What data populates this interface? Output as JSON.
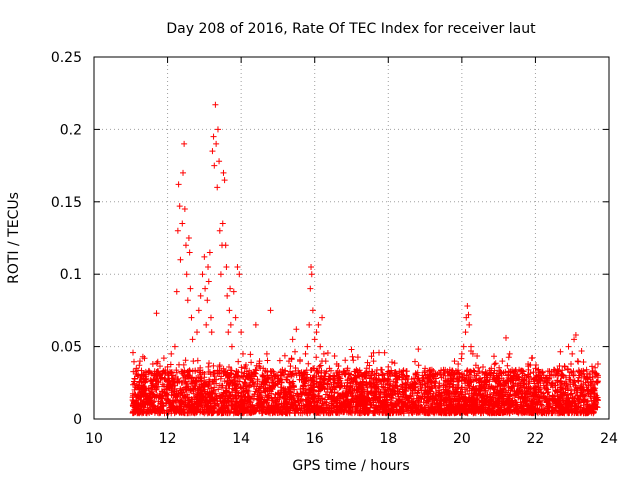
{
  "chart_data": {
    "type": "scatter",
    "title": "Day 208 of 2016, Rate Of TEC Index for receiver laut",
    "xlabel": "GPS time / hours",
    "ylabel": "ROTI / TECUs",
    "xlim": [
      10,
      24
    ],
    "ylim": [
      0,
      0.25
    ],
    "x_ticks": [
      10,
      12,
      14,
      16,
      18,
      20,
      22,
      24
    ],
    "x_tick_labels": [
      "10",
      "12",
      "14",
      "16",
      "18",
      "20",
      "22",
      "24"
    ],
    "y_ticks": [
      0,
      0.05,
      0.1,
      0.15,
      0.2,
      0.25
    ],
    "y_tick_labels": [
      "0",
      "0.05",
      "0.1",
      "0.15",
      "0.2",
      "0.25"
    ],
    "grid": true,
    "marker": "+",
    "marker_color": "#ff0000",
    "series": [
      {
        "name": "ROTI",
        "points": [
          [
            11.05,
            0.015
          ],
          [
            11.1,
            0.028
          ],
          [
            11.15,
            0.035
          ],
          [
            11.2,
            0.022
          ],
          [
            11.25,
            0.04
          ],
          [
            11.3,
            0.018
          ],
          [
            11.35,
            0.03
          ],
          [
            11.4,
            0.026
          ],
          [
            11.45,
            0.012
          ],
          [
            11.5,
            0.033
          ],
          [
            11.55,
            0.02
          ],
          [
            11.6,
            0.038
          ],
          [
            11.65,
            0.016
          ],
          [
            11.7,
            0.073
          ],
          [
            11.75,
            0.025
          ],
          [
            11.8,
            0.031
          ],
          [
            11.85,
            0.019
          ],
          [
            11.9,
            0.042
          ],
          [
            11.95,
            0.027
          ],
          [
            12.0,
            0.036
          ],
          [
            12.05,
            0.022
          ],
          [
            12.1,
            0.045
          ],
          [
            12.15,
            0.03
          ],
          [
            12.2,
            0.05
          ],
          [
            12.25,
            0.088
          ],
          [
            12.28,
            0.13
          ],
          [
            12.3,
            0.162
          ],
          [
            12.33,
            0.147
          ],
          [
            12.35,
            0.11
          ],
          [
            12.4,
            0.135
          ],
          [
            12.42,
            0.17
          ],
          [
            12.45,
            0.19
          ],
          [
            12.47,
            0.145
          ],
          [
            12.5,
            0.12
          ],
          [
            12.52,
            0.1
          ],
          [
            12.55,
            0.082
          ],
          [
            12.58,
            0.125
          ],
          [
            12.6,
            0.115
          ],
          [
            12.62,
            0.09
          ],
          [
            12.65,
            0.07
          ],
          [
            12.68,
            0.055
          ],
          [
            12.7,
            0.04
          ],
          [
            12.75,
            0.033
          ],
          [
            12.8,
            0.06
          ],
          [
            12.85,
            0.075
          ],
          [
            12.9,
            0.085
          ],
          [
            12.95,
            0.1
          ],
          [
            13.0,
            0.112
          ],
          [
            13.02,
            0.09
          ],
          [
            13.05,
            0.065
          ],
          [
            13.08,
            0.082
          ],
          [
            13.1,
            0.105
          ],
          [
            13.12,
            0.095
          ],
          [
            13.15,
            0.115
          ],
          [
            13.18,
            0.07
          ],
          [
            13.2,
            0.06
          ],
          [
            13.22,
            0.185
          ],
          [
            13.25,
            0.195
          ],
          [
            13.27,
            0.175
          ],
          [
            13.3,
            0.217
          ],
          [
            13.32,
            0.19
          ],
          [
            13.35,
            0.16
          ],
          [
            13.37,
            0.2
          ],
          [
            13.4,
            0.178
          ],
          [
            13.42,
            0.13
          ],
          [
            13.45,
            0.1
          ],
          [
            13.48,
            0.12
          ],
          [
            13.5,
            0.135
          ],
          [
            13.52,
            0.17
          ],
          [
            13.55,
            0.165
          ],
          [
            13.58,
            0.12
          ],
          [
            13.6,
            0.105
          ],
          [
            13.62,
            0.085
          ],
          [
            13.65,
            0.06
          ],
          [
            13.68,
            0.075
          ],
          [
            13.7,
            0.09
          ],
          [
            13.72,
            0.065
          ],
          [
            13.75,
            0.05
          ],
          [
            13.8,
            0.088
          ],
          [
            13.85,
            0.07
          ],
          [
            13.9,
            0.105
          ],
          [
            13.95,
            0.1
          ],
          [
            14.0,
            0.06
          ],
          [
            14.05,
            0.045
          ],
          [
            14.1,
            0.035
          ],
          [
            14.2,
            0.03
          ],
          [
            14.3,
            0.028
          ],
          [
            14.4,
            0.065
          ],
          [
            14.5,
            0.04
          ],
          [
            14.6,
            0.035
          ],
          [
            14.7,
            0.045
          ],
          [
            14.8,
            0.075
          ],
          [
            14.9,
            0.03
          ],
          [
            15.0,
            0.028
          ],
          [
            15.1,
            0.025
          ],
          [
            15.2,
            0.033
          ],
          [
            15.3,
            0.04
          ],
          [
            15.4,
            0.055
          ],
          [
            15.5,
            0.062
          ],
          [
            15.6,
            0.04
          ],
          [
            15.7,
            0.032
          ],
          [
            15.75,
            0.045
          ],
          [
            15.8,
            0.05
          ],
          [
            15.85,
            0.065
          ],
          [
            15.88,
            0.09
          ],
          [
            15.9,
            0.105
          ],
          [
            15.92,
            0.1
          ],
          [
            15.95,
            0.075
          ],
          [
            16.0,
            0.055
          ],
          [
            16.05,
            0.06
          ],
          [
            16.1,
            0.065
          ],
          [
            16.15,
            0.05
          ],
          [
            16.2,
            0.07
          ],
          [
            16.25,
            0.045
          ],
          [
            16.3,
            0.04
          ],
          [
            16.4,
            0.035
          ],
          [
            16.5,
            0.03
          ],
          [
            16.6,
            0.038
          ],
          [
            16.7,
            0.028
          ],
          [
            16.8,
            0.033
          ],
          [
            16.9,
            0.025
          ],
          [
            17.0,
            0.048
          ],
          [
            17.1,
            0.03
          ],
          [
            17.2,
            0.022
          ],
          [
            17.3,
            0.026
          ],
          [
            17.4,
            0.03
          ],
          [
            17.5,
            0.028
          ],
          [
            17.6,
            0.04
          ],
          [
            17.7,
            0.024
          ],
          [
            17.8,
            0.034
          ],
          [
            17.9,
            0.027
          ],
          [
            18.0,
            0.036
          ],
          [
            18.1,
            0.02
          ],
          [
            18.2,
            0.025
          ],
          [
            18.3,
            0.033
          ],
          [
            18.4,
            0.022
          ],
          [
            18.5,
            0.03
          ],
          [
            18.6,
            0.024
          ],
          [
            18.7,
            0.028
          ],
          [
            18.8,
            0.032
          ],
          [
            18.9,
            0.02
          ],
          [
            19.0,
            0.035
          ],
          [
            19.1,
            0.025
          ],
          [
            19.2,
            0.03
          ],
          [
            19.3,
            0.028
          ],
          [
            19.4,
            0.022
          ],
          [
            19.5,
            0.034
          ],
          [
            19.6,
            0.026
          ],
          [
            19.7,
            0.03
          ],
          [
            19.8,
            0.04
          ],
          [
            19.9,
            0.038
          ],
          [
            20.0,
            0.045
          ],
          [
            20.05,
            0.05
          ],
          [
            20.1,
            0.06
          ],
          [
            20.12,
            0.07
          ],
          [
            20.15,
            0.078
          ],
          [
            20.18,
            0.072
          ],
          [
            20.2,
            0.065
          ],
          [
            20.25,
            0.05
          ],
          [
            20.3,
            0.045
          ],
          [
            20.4,
            0.03
          ],
          [
            20.5,
            0.028
          ],
          [
            20.6,
            0.025
          ],
          [
            20.7,
            0.03
          ],
          [
            20.8,
            0.035
          ],
          [
            20.9,
            0.028
          ],
          [
            21.0,
            0.03
          ],
          [
            21.1,
            0.04
          ],
          [
            21.2,
            0.056
          ],
          [
            21.3,
            0.045
          ],
          [
            21.4,
            0.03
          ],
          [
            21.5,
            0.028
          ],
          [
            21.6,
            0.033
          ],
          [
            21.7,
            0.03
          ],
          [
            21.8,
            0.038
          ],
          [
            21.9,
            0.042
          ],
          [
            22.0,
            0.035
          ],
          [
            22.1,
            0.03
          ],
          [
            22.2,
            0.032
          ],
          [
            22.3,
            0.028
          ],
          [
            22.4,
            0.03
          ],
          [
            22.5,
            0.034
          ],
          [
            22.6,
            0.025
          ],
          [
            22.7,
            0.03
          ],
          [
            22.8,
            0.036
          ],
          [
            22.9,
            0.05
          ],
          [
            23.0,
            0.045
          ],
          [
            23.05,
            0.055
          ],
          [
            23.1,
            0.058
          ],
          [
            23.15,
            0.04
          ],
          [
            23.2,
            0.03
          ],
          [
            23.3,
            0.033
          ],
          [
            23.4,
            0.028
          ],
          [
            23.5,
            0.025
          ],
          [
            23.6,
            0.02
          ],
          [
            23.7,
            0.038
          ]
        ]
      }
    ]
  }
}
